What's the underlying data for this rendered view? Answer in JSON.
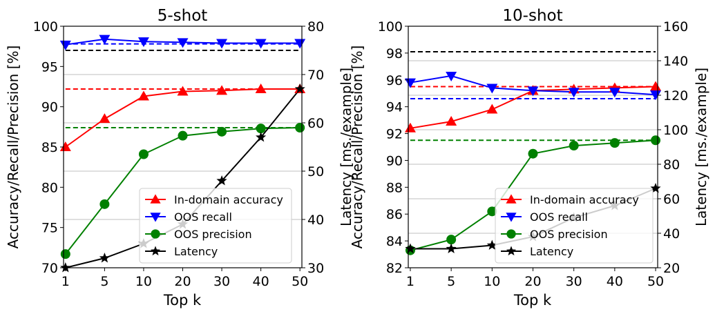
{
  "chart_data": [
    {
      "type": "line",
      "title": "5-shot",
      "xlabel": "Top k",
      "ylabel": "Accuracy/Recall/Precision [%]",
      "y2label": "Latency [ms./example]",
      "categories": [
        "1",
        "5",
        "10",
        "20",
        "30",
        "40",
        "50"
      ],
      "ylim": [
        70,
        100
      ],
      "yticks": [
        "70",
        "75",
        "80",
        "85",
        "90",
        "95",
        "100"
      ],
      "y2lim": [
        30,
        80
      ],
      "y2ticks": [
        "30",
        "40",
        "50",
        "60",
        "70",
        "80"
      ],
      "legend_position": "lower-right",
      "series": [
        {
          "name": "In-domain accuracy",
          "axis": "left",
          "color": "#ff0000",
          "marker": "triangle-up",
          "values": [
            85.0,
            88.5,
            91.3,
            91.9,
            92.0,
            92.2,
            92.2
          ]
        },
        {
          "name": "OOS recall",
          "axis": "left",
          "color": "#0000ff",
          "marker": "triangle-down",
          "values": [
            97.7,
            98.4,
            98.1,
            98.0,
            97.9,
            97.9,
            97.9
          ]
        },
        {
          "name": "OOS precision",
          "axis": "left",
          "color": "#008000",
          "marker": "circle",
          "values": [
            71.7,
            77.9,
            84.1,
            86.4,
            86.9,
            87.3,
            87.4
          ]
        },
        {
          "name": "Latency",
          "axis": "right",
          "color": "#000000",
          "marker": "star",
          "values": [
            30.0,
            32.0,
            35.0,
            39.0,
            48.0,
            57.0,
            67.0
          ]
        }
      ],
      "reference_lines": [
        {
          "axis": "left",
          "value": 92.2,
          "color": "#ff0000"
        },
        {
          "axis": "left",
          "value": 97.8,
          "color": "#0000ff"
        },
        {
          "axis": "left",
          "value": 97.0,
          "color": "#000000"
        },
        {
          "axis": "left",
          "value": 87.4,
          "color": "#008000"
        }
      ]
    },
    {
      "type": "line",
      "title": "10-shot",
      "xlabel": "Top k",
      "ylabel": "Accuracy/Recall/Precision [%]",
      "y2label": "Latency [ms./example]",
      "categories": [
        "1",
        "5",
        "10",
        "20",
        "30",
        "40",
        "50"
      ],
      "ylim": [
        82,
        100
      ],
      "yticks": [
        "82",
        "84",
        "86",
        "88",
        "90",
        "92",
        "94",
        "96",
        "98",
        "100"
      ],
      "y2lim": [
        20,
        160
      ],
      "y2ticks": [
        "20",
        "40",
        "60",
        "80",
        "100",
        "120",
        "140",
        "160"
      ],
      "legend_position": "lower-right",
      "series": [
        {
          "name": "In-domain accuracy",
          "axis": "left",
          "color": "#ff0000",
          "marker": "triangle-up",
          "values": [
            92.4,
            92.9,
            93.8,
            95.2,
            95.3,
            95.4,
            95.5
          ]
        },
        {
          "name": "OOS recall",
          "axis": "left",
          "color": "#0000ff",
          "marker": "triangle-down",
          "values": [
            95.8,
            96.3,
            95.4,
            95.2,
            95.1,
            95.1,
            94.9
          ]
        },
        {
          "name": "OOS precision",
          "axis": "left",
          "color": "#008000",
          "marker": "circle",
          "values": [
            83.3,
            84.1,
            86.2,
            90.5,
            91.1,
            91.3,
            91.5
          ]
        },
        {
          "name": "Latency",
          "axis": "right",
          "color": "#000000",
          "marker": "star",
          "values": [
            31.0,
            31.0,
            33.0,
            38.0,
            49.0,
            56.0,
            66.0
          ]
        }
      ],
      "reference_lines": [
        {
          "axis": "left",
          "value": 95.5,
          "color": "#ff0000"
        },
        {
          "axis": "left",
          "value": 94.6,
          "color": "#0000ff"
        },
        {
          "axis": "left",
          "value": 98.1,
          "color": "#000000"
        },
        {
          "axis": "left",
          "value": 91.5,
          "color": "#008000"
        }
      ]
    }
  ]
}
